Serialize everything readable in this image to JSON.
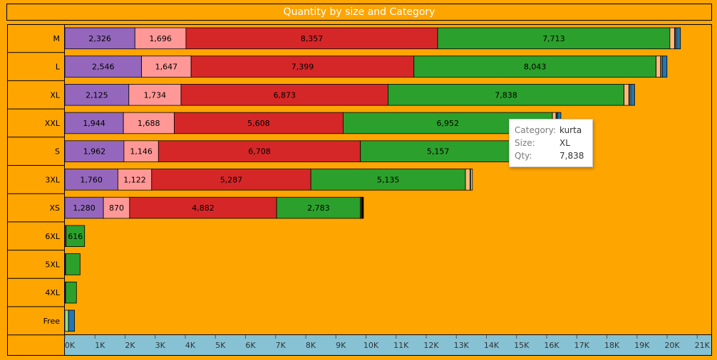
{
  "chart_data": {
    "type": "bar",
    "orientation": "horizontal",
    "stacked": true,
    "title": "Quantity by size  and Category",
    "categories": [
      "M",
      "L",
      "XL",
      "XXL",
      "S",
      "3XL",
      "XS",
      "6XL",
      "5XL",
      "4XL",
      "Free"
    ],
    "series": [
      {
        "color": "#9467BD",
        "values": [
          2326,
          2546,
          2125,
          1944,
          1962,
          1760,
          1280,
          0,
          0,
          0,
          0
        ],
        "labels": [
          "2,326",
          "2,546",
          "2,125",
          "1,944",
          "1,962",
          "1,760",
          "1,280",
          "",
          "",
          "",
          ""
        ]
      },
      {
        "color": "#FF9896",
        "values": [
          1696,
          1647,
          1734,
          1688,
          1146,
          1122,
          870,
          0,
          0,
          0,
          0
        ],
        "labels": [
          "1,696",
          "1,647",
          "1,734",
          "1,688",
          "1,146",
          "1,122",
          "870",
          "",
          "",
          "",
          ""
        ]
      },
      {
        "color": "#D62728",
        "values": [
          8357,
          7399,
          6873,
          5608,
          6708,
          5287,
          4882,
          40,
          25,
          25,
          0
        ],
        "labels": [
          "8,357",
          "7,399",
          "6,873",
          "5,608",
          "6,708",
          "5,287",
          "4,882",
          "",
          "",
          "",
          ""
        ]
      },
      {
        "color": "#2CA02C",
        "values": [
          7713,
          8043,
          7838,
          6952,
          5157,
          5135,
          2783,
          616,
          480,
          360,
          0
        ],
        "labels": [
          "7,713",
          "8,043",
          "7,838",
          "6,952",
          "5,157",
          "5,135",
          "2,783",
          "616",
          "",
          "",
          ""
        ]
      },
      {
        "color": "#FFBB78",
        "values": [
          160,
          150,
          160,
          120,
          100,
          150,
          30,
          0,
          0,
          0,
          0
        ],
        "labels": [
          "",
          "",
          "",
          "",
          "",
          "",
          "",
          "",
          "",
          "",
          ""
        ]
      },
      {
        "color": "#98DF8A",
        "values": [
          20,
          20,
          20,
          20,
          20,
          20,
          10,
          0,
          0,
          0,
          120
        ],
        "labels": [
          "",
          "",
          "",
          "",
          "",
          "",
          "",
          "",
          "",
          "",
          ""
        ]
      },
      {
        "color": "#AEC7E8",
        "values": [
          40,
          40,
          40,
          30,
          30,
          60,
          0,
          0,
          0,
          0,
          0
        ],
        "labels": [
          "",
          "",
          "",
          "",
          "",
          "",
          "",
          "",
          "",
          "",
          ""
        ]
      },
      {
        "color": "#1F77B4",
        "values": [
          130,
          150,
          130,
          110,
          0,
          0,
          0,
          0,
          0,
          0,
          200
        ],
        "labels": [
          "",
          "",
          "",
          "",
          "",
          "",
          "",
          "",
          "",
          "",
          ""
        ]
      },
      {
        "color": "#000000",
        "values": [
          0,
          0,
          0,
          0,
          0,
          0,
          60,
          0,
          0,
          0,
          0
        ],
        "labels": [
          "",
          "",
          "",
          "",
          "",
          "",
          "",
          "",
          "",
          "",
          ""
        ]
      }
    ],
    "xticks": [
      0,
      1000,
      2000,
      3000,
      4000,
      5000,
      6000,
      7000,
      8000,
      9000,
      10000,
      11000,
      12000,
      13000,
      14000,
      15000,
      16000,
      17000,
      18000,
      19000,
      20000,
      21000
    ],
    "xtick_labels": [
      "0K",
      "1K",
      "2K",
      "3K",
      "4K",
      "5K",
      "6K",
      "7K",
      "8K",
      "9K",
      "10K",
      "11K",
      "12K",
      "13K",
      "14K",
      "15K",
      "16K",
      "17K",
      "18K",
      "19K",
      "20K",
      "21K"
    ],
    "xlim": [
      0,
      21500
    ],
    "grid": false,
    "legend": "none"
  },
  "tooltip": {
    "category_key": "Category:",
    "category_value": "kurta",
    "size_key": "Size:",
    "size_value": "XL",
    "qty_key": "Qty:",
    "qty_value": "7,838"
  },
  "colors": {
    "background": "#FFA500",
    "axis_band": "#86C2D4",
    "title_text": "#FFFFFF"
  }
}
